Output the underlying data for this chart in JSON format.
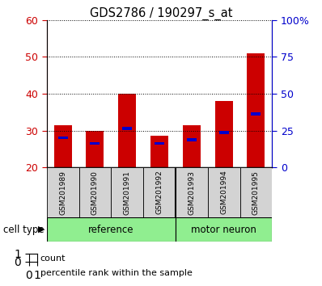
{
  "title": "GDS2786 / 190297_s_at",
  "categories": [
    "GSM201989",
    "GSM201990",
    "GSM201991",
    "GSM201992",
    "GSM201993",
    "GSM201994",
    "GSM201995"
  ],
  "count_values": [
    31.5,
    30.0,
    40.0,
    28.5,
    31.5,
    38.0,
    51.0
  ],
  "percentile_values": [
    28.0,
    26.5,
    30.5,
    26.5,
    27.5,
    29.5,
    34.5
  ],
  "bar_bottom": 20,
  "ylim_left": [
    20,
    60
  ],
  "ylim_right": [
    0,
    100
  ],
  "yticks_left": [
    20,
    30,
    40,
    50,
    60
  ],
  "ytick_labels_left": [
    "20",
    "30",
    "40",
    "50",
    "60"
  ],
  "yticks_right": [
    0,
    25,
    50,
    75,
    100
  ],
  "ytick_labels_right": [
    "0",
    "25",
    "50",
    "75",
    "100%"
  ],
  "bar_color": "#cc0000",
  "percentile_color": "#0000cc",
  "tick_label_color_left": "#cc0000",
  "tick_label_color_right": "#0000cc",
  "legend_count_label": "count",
  "legend_percentile_label": "percentile rank within the sample",
  "bar_width": 0.55,
  "bg_color_label": "#d3d3d3",
  "green_color": "#90ee90",
  "fig_width": 3.98,
  "fig_height": 3.54,
  "dpi": 100
}
